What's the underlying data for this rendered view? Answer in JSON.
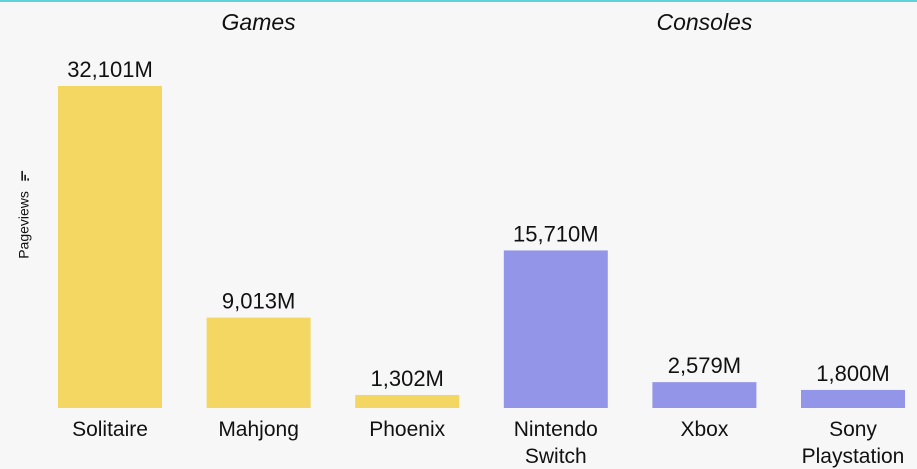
{
  "chart_data": {
    "type": "bar",
    "ylabel": "Pageviews",
    "groups": [
      {
        "name": "Games",
        "color": "#f4d762",
        "categories": [
          "Solitaire",
          "Mahjong",
          "Phoenix"
        ],
        "values": [
          32101,
          9013,
          1302
        ],
        "labels": [
          "32,101M",
          "9,013M",
          "1,302M"
        ]
      },
      {
        "name": "Consoles",
        "color": "#9396e8",
        "categories": [
          "Nintendo Switch",
          "Xbox",
          "Sony Playstation"
        ],
        "values": [
          15710,
          2579,
          1800
        ],
        "labels": [
          "15,710M",
          "2,579M",
          "1,800M"
        ]
      }
    ],
    "category_lines": [
      [
        "Solitaire"
      ],
      [
        "Mahjong"
      ],
      [
        "Phoenix"
      ],
      [
        "Nintendo",
        "Switch"
      ],
      [
        "Xbox"
      ],
      [
        "Sony",
        "Playstation"
      ]
    ],
    "ylim": [
      0,
      32101
    ],
    "grid": false,
    "legend": "none"
  },
  "icons": {
    "ylabel_icon": "bar-chart-icon"
  }
}
